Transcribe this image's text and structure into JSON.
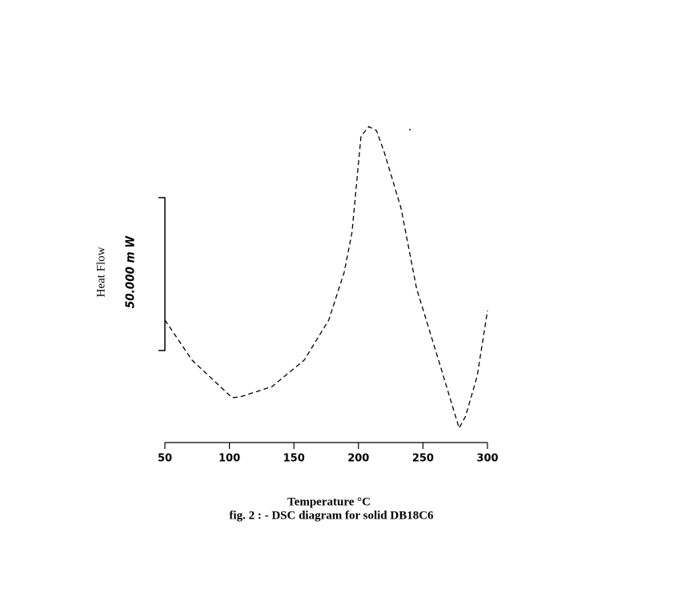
{
  "chart_data": {
    "type": "line",
    "y_label": "Heat Flow",
    "scale_label": "50.000 m W",
    "x_label": "Temperature °C",
    "caption": "fig. 2 : - DSC diagram for solid DB18C6",
    "x": [
      50,
      71,
      102,
      108,
      133,
      158,
      177,
      189,
      195,
      202,
      208,
      214,
      220,
      233,
      245,
      264,
      278,
      283,
      292,
      300
    ],
    "series": [
      {
        "color": "#000000",
        "values": [
          40.1,
          27.0,
          14.7,
          14.9,
          18.3,
          27.0,
          40.1,
          55.8,
          68.8,
          100.3,
          103.4,
          102.1,
          95.0,
          76.7,
          50.5,
          24.3,
          4.7,
          8.6,
          21.7,
          43.2
        ]
      }
    ],
    "xlim": [
      50,
      300
    ],
    "xticks": [
      50,
      100,
      150,
      200,
      250,
      300
    ],
    "ylim": [
      0,
      110
    ]
  }
}
